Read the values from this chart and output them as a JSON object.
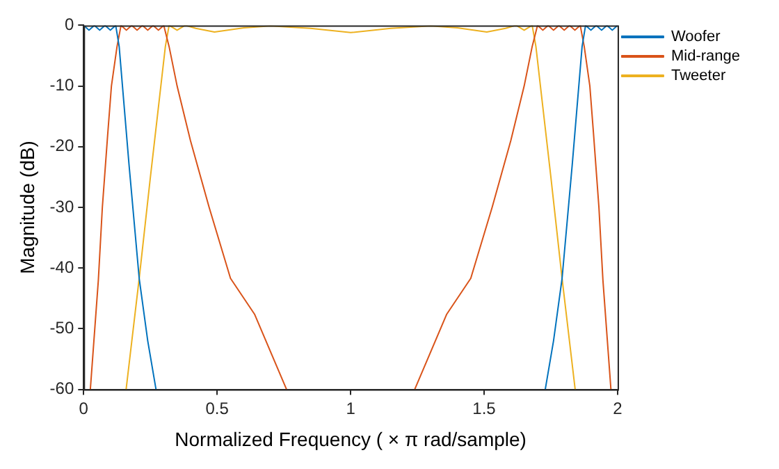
{
  "chart_data": {
    "type": "line",
    "xlabel": "Normalized Frequency ( × π rad/sample)",
    "ylabel": "Magnitude (dB)",
    "xlim": [
      0,
      2
    ],
    "xticks": [
      0,
      0.5,
      1,
      1.5,
      2
    ],
    "ylim": [
      -60,
      0
    ],
    "yticks": [
      -60,
      -50,
      -40,
      -30,
      -20,
      -10,
      0
    ],
    "grid": false,
    "legend": "top right",
    "marker": "none",
    "line_style": "solid",
    "series": [
      {
        "name": "Woofer",
        "color": "#0072bd",
        "x": [
          0,
          0.02,
          0.04,
          0.06,
          0.08,
          0.1,
          0.12,
          0.133,
          0.17,
          0.208,
          0.24,
          0.271,
          1,
          1.729,
          1.76,
          1.792,
          1.83,
          1.867,
          1.88,
          1.9,
          1.92,
          1.94,
          1.96,
          1.98,
          2
        ],
        "values": [
          0,
          -0.8,
          0,
          -0.8,
          0,
          -0.8,
          0,
          -3.5,
          -23,
          -41.7,
          -52,
          -60,
          null,
          -60,
          -52,
          -41.7,
          -23,
          -3.5,
          0,
          -0.8,
          0,
          -0.8,
          0,
          -0.8,
          0
        ]
      },
      {
        "name": "Mid-range",
        "color": "#d95319",
        "x": [
          0.025,
          0.055,
          0.07,
          0.09,
          0.104,
          0.125,
          0.14,
          0.16,
          0.18,
          0.2,
          0.22,
          0.24,
          0.26,
          0.28,
          0.3,
          0.32,
          0.35,
          0.4,
          0.47,
          0.55,
          0.64,
          0.76,
          1,
          1.24,
          1.36,
          1.45,
          1.53,
          1.6,
          1.65,
          1.68,
          1.7,
          1.72,
          1.74,
          1.76,
          1.78,
          1.8,
          1.82,
          1.84,
          1.86,
          1.875,
          1.896,
          1.91,
          1.93,
          1.945,
          1.975
        ],
        "values": [
          -60,
          -42,
          -30,
          -18,
          -10,
          -3.5,
          0,
          -0.8,
          0,
          -0.8,
          0,
          -0.8,
          0,
          -0.8,
          0,
          -3.5,
          -10,
          -19,
          -30,
          -41.7,
          -47.6,
          -60,
          null,
          -60,
          -47.6,
          -41.7,
          -30,
          -19,
          -10,
          -3.5,
          0,
          -0.8,
          0,
          -0.8,
          0,
          -0.8,
          0,
          -0.8,
          0,
          -3.5,
          -10,
          -18,
          -30,
          -42,
          -60
        ]
      },
      {
        "name": "Tweeter",
        "color": "#edb120",
        "x": [
          0.159,
          0.208,
          0.25,
          0.28,
          0.306,
          0.32,
          0.35,
          0.38,
          0.42,
          0.49,
          0.6,
          0.7,
          0.85,
          1,
          1.15,
          1.3,
          1.4,
          1.51,
          1.58,
          1.62,
          1.65,
          1.68,
          1.694,
          1.72,
          1.75,
          1.792,
          1.841
        ],
        "values": [
          -60,
          -41.7,
          -25,
          -13.5,
          -3.5,
          0,
          -0.8,
          0,
          -0.5,
          -1.1,
          -0.4,
          -0.1,
          -0.5,
          -1.2,
          -0.5,
          -0.1,
          -0.4,
          -1.1,
          -0.5,
          0,
          -0.8,
          0,
          -3.5,
          -13.5,
          -25,
          -41.7,
          -60
        ]
      }
    ]
  }
}
